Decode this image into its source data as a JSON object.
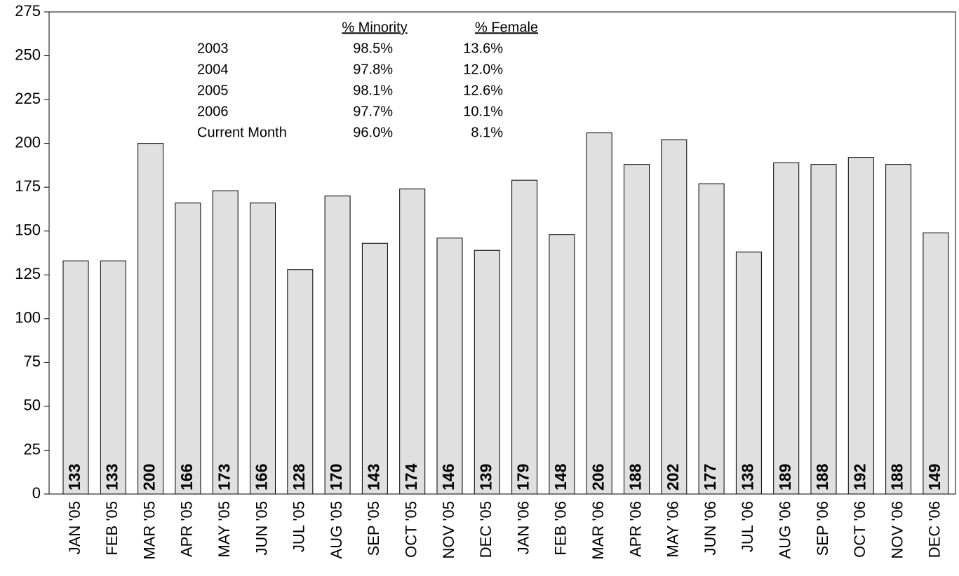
{
  "chart_data": {
    "type": "bar",
    "categories": [
      "JAN '05",
      "FEB '05",
      "MAR '05",
      "APR '05",
      "MAY '05",
      "JUN '05",
      "JUL '05",
      "AUG '05",
      "SEP '05",
      "OCT '05",
      "NOV '05",
      "DEC '05",
      "JAN '06",
      "FEB '06",
      "MAR '06",
      "APR '06",
      "MAY '06",
      "JUN '06",
      "JUL '06",
      "AUG '06",
      "SEP '06",
      "OCT '06",
      "NOV '06",
      "DEC '06"
    ],
    "values": [
      133,
      133,
      200,
      166,
      173,
      166,
      128,
      170,
      143,
      174,
      146,
      139,
      179,
      148,
      206,
      188,
      202,
      177,
      138,
      189,
      188,
      192,
      188,
      149
    ],
    "color": "#e0e0e0",
    "ylim": [
      0,
      275
    ],
    "yticks": [
      0,
      25,
      50,
      75,
      100,
      125,
      150,
      175,
      200,
      225,
      250,
      275
    ],
    "table": {
      "columns": [
        "% Minority",
        "% Female"
      ],
      "rows": [
        {
          "label": "2003",
          "cells": [
            "98.5%",
            "13.6%"
          ]
        },
        {
          "label": "2004",
          "cells": [
            "97.8%",
            "12.0%"
          ]
        },
        {
          "label": "2005",
          "cells": [
            "98.1%",
            "12.6%"
          ]
        },
        {
          "label": "2006",
          "cells": [
            "97.7%",
            "10.1%"
          ]
        },
        {
          "label": "Current Month",
          "cells": [
            "96.0%",
            "8.1%"
          ]
        }
      ]
    }
  }
}
